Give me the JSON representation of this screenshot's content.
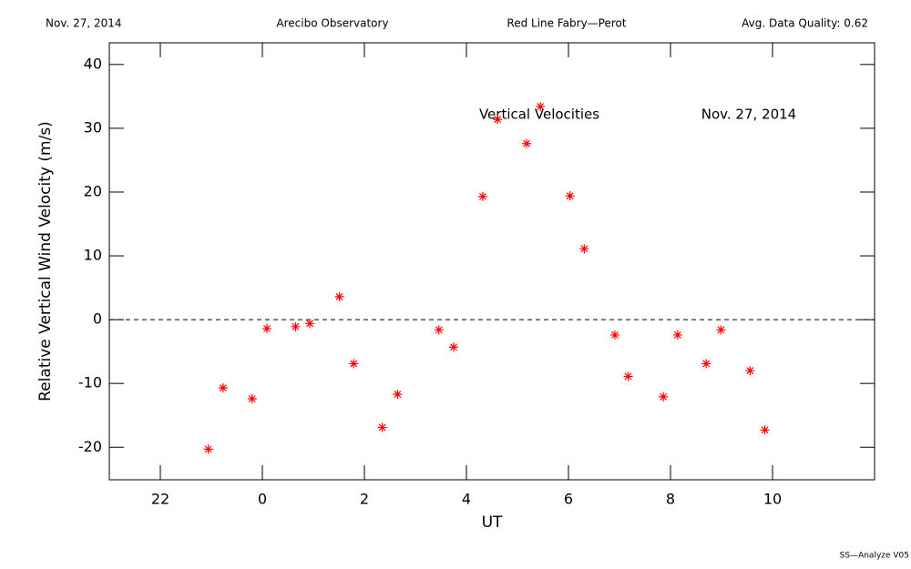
{
  "header": {
    "date": "Nov. 27, 2014",
    "site": "Arecibo Observatory",
    "instrument": "Red Line Fabry—Perot",
    "quality": "Avg. Data Quality: 0.62"
  },
  "footer": "SS—Analyze V05",
  "chart_data": {
    "type": "scatter",
    "xlabel": "UT",
    "ylabel": "Relative Vertical Wind Velocity (m/s)",
    "annotations": [
      "Vertical Velocities",
      "Nov. 27, 2014"
    ],
    "x": [
      -1.06,
      -0.77,
      -0.2,
      0.09,
      0.65,
      0.93,
      1.51,
      1.79,
      2.35,
      2.65,
      3.46,
      3.75,
      4.32,
      4.61,
      5.18,
      5.45,
      6.03,
      6.31,
      6.91,
      7.17,
      7.86,
      8.14,
      8.7,
      8.99,
      9.56,
      9.85
    ],
    "values": [
      -20.3,
      -10.7,
      -12.4,
      -1.4,
      -1.1,
      -0.6,
      3.6,
      -6.9,
      -16.9,
      -11.7,
      -1.6,
      -4.3,
      19.3,
      31.4,
      27.6,
      33.4,
      19.4,
      11.1,
      -2.4,
      -8.9,
      -12.1,
      -2.4,
      -6.9,
      -1.6,
      -8.0,
      -17.3
    ],
    "color": "#ff0000",
    "xlim": [
      -3,
      12
    ],
    "xticks": [
      {
        "value": -2,
        "label": "22"
      },
      0,
      2,
      4,
      6,
      8,
      10
    ],
    "ylim": [
      -25.1,
      43.4
    ],
    "yticks": [
      -20,
      -10,
      0,
      10,
      20,
      30,
      40
    ],
    "zero_line": true
  }
}
